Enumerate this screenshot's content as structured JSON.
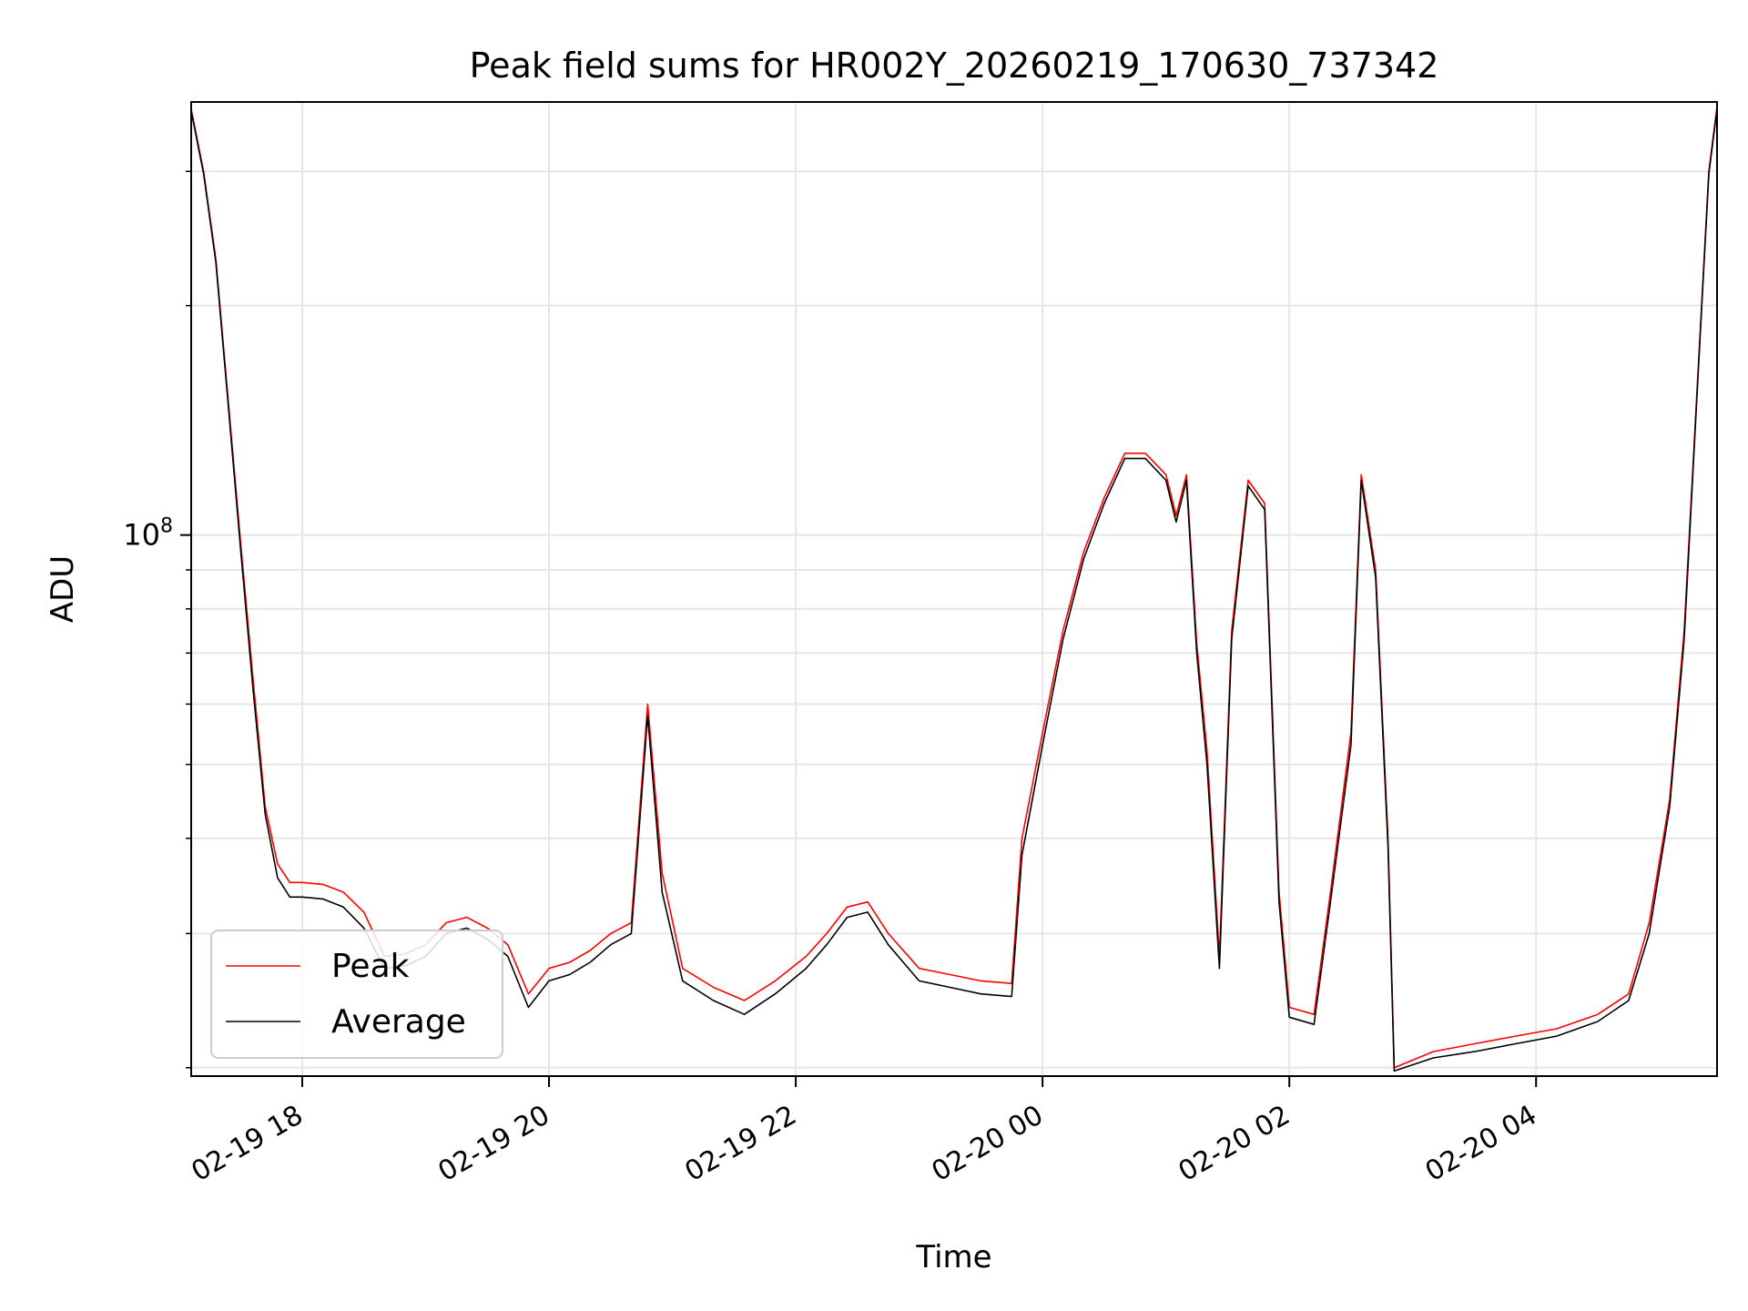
{
  "chart_data": {
    "type": "line",
    "title": "Peak field sums for HR002Y_20260219_170630_737342",
    "xlabel": "Time",
    "ylabel": "ADU",
    "yscale": "log",
    "xlim": [
      "2026-02-19 17:06",
      "2026-02-20 05:28"
    ],
    "ylim": [
      19500000,
      370000000
    ],
    "grid": true,
    "legend_position": "lower-left",
    "x_ticks": [
      {
        "t": "2026-02-19 18:00",
        "label": "02-19 18"
      },
      {
        "t": "2026-02-19 20:00",
        "label": "02-19 20"
      },
      {
        "t": "2026-02-19 22:00",
        "label": "02-19 22"
      },
      {
        "t": "2026-02-20 00:00",
        "label": "02-20 00"
      },
      {
        "t": "2026-02-20 02:00",
        "label": "02-20 02"
      },
      {
        "t": "2026-02-20 04:00",
        "label": "02-20 04"
      }
    ],
    "y_major_ticks": [
      {
        "value": 100000000,
        "base": "10",
        "exp": "8"
      }
    ],
    "y_minor_ticks": [
      20000000,
      30000000,
      40000000,
      50000000,
      60000000,
      70000000,
      80000000,
      90000000,
      200000000,
      300000000
    ],
    "series": [
      {
        "name": "Peak",
        "color": "#ff0000",
        "points": [
          [
            "2026-02-19 17:06",
            362000000
          ],
          [
            "2026-02-19 17:12",
            300000000
          ],
          [
            "2026-02-19 17:18",
            230000000
          ],
          [
            "2026-02-19 17:24",
            150000000
          ],
          [
            "2026-02-19 17:30",
            98000000
          ],
          [
            "2026-02-19 17:36",
            65000000
          ],
          [
            "2026-02-19 17:42",
            44000000
          ],
          [
            "2026-02-19 17:48",
            37000000
          ],
          [
            "2026-02-19 17:54",
            35000000
          ],
          [
            "2026-02-19 18:00",
            35000000
          ],
          [
            "2026-02-19 18:10",
            34800000
          ],
          [
            "2026-02-19 18:20",
            34000000
          ],
          [
            "2026-02-19 18:30",
            32000000
          ],
          [
            "2026-02-19 18:40",
            28000000
          ],
          [
            "2026-02-19 18:50",
            28200000
          ],
          [
            "2026-02-19 19:00",
            29000000
          ],
          [
            "2026-02-19 19:10",
            31000000
          ],
          [
            "2026-02-19 19:20",
            31500000
          ],
          [
            "2026-02-19 19:30",
            30500000
          ],
          [
            "2026-02-19 19:40",
            29000000
          ],
          [
            "2026-02-19 19:50",
            25000000
          ],
          [
            "2026-02-19 20:00",
            27000000
          ],
          [
            "2026-02-19 20:10",
            27500000
          ],
          [
            "2026-02-19 20:20",
            28500000
          ],
          [
            "2026-02-19 20:30",
            30000000
          ],
          [
            "2026-02-19 20:40",
            31000000
          ],
          [
            "2026-02-19 20:48",
            60000000
          ],
          [
            "2026-02-19 20:55",
            36000000
          ],
          [
            "2026-02-19 21:05",
            27000000
          ],
          [
            "2026-02-19 21:20",
            25500000
          ],
          [
            "2026-02-19 21:35",
            24500000
          ],
          [
            "2026-02-19 21:50",
            26000000
          ],
          [
            "2026-02-19 22:05",
            28000000
          ],
          [
            "2026-02-19 22:15",
            30000000
          ],
          [
            "2026-02-19 22:25",
            32500000
          ],
          [
            "2026-02-19 22:35",
            33000000
          ],
          [
            "2026-02-19 22:45",
            30000000
          ],
          [
            "2026-02-19 23:00",
            27000000
          ],
          [
            "2026-02-19 23:15",
            26500000
          ],
          [
            "2026-02-19 23:30",
            26000000
          ],
          [
            "2026-02-19 23:45",
            25800000
          ],
          [
            "2026-02-19 23:50",
            40000000
          ],
          [
            "2026-02-20 00:00",
            55000000
          ],
          [
            "2026-02-20 00:10",
            75000000
          ],
          [
            "2026-02-20 00:20",
            95000000
          ],
          [
            "2026-02-20 00:30",
            112000000
          ],
          [
            "2026-02-20 00:40",
            128000000
          ],
          [
            "2026-02-20 00:50",
            128000000
          ],
          [
            "2026-02-20 01:00",
            120000000
          ],
          [
            "2026-02-20 01:05",
            106000000
          ],
          [
            "2026-02-20 01:10",
            120000000
          ],
          [
            "2026-02-20 01:15",
            72000000
          ],
          [
            "2026-02-20 01:20",
            52000000
          ],
          [
            "2026-02-20 01:26",
            28000000
          ],
          [
            "2026-02-20 01:32",
            75000000
          ],
          [
            "2026-02-20 01:40",
            118000000
          ],
          [
            "2026-02-20 01:48",
            110000000
          ],
          [
            "2026-02-20 01:55",
            34000000
          ],
          [
            "2026-02-20 02:00",
            24000000
          ],
          [
            "2026-02-20 02:12",
            23500000
          ],
          [
            "2026-02-20 02:20",
            34000000
          ],
          [
            "2026-02-20 02:30",
            55000000
          ],
          [
            "2026-02-20 02:35",
            120000000
          ],
          [
            "2026-02-20 02:42",
            90000000
          ],
          [
            "2026-02-20 02:48",
            40000000
          ],
          [
            "2026-02-20 02:51",
            20000000
          ],
          [
            "2026-02-20 03:10",
            21000000
          ],
          [
            "2026-02-20 03:30",
            21500000
          ],
          [
            "2026-02-20 03:50",
            22000000
          ],
          [
            "2026-02-20 04:10",
            22500000
          ],
          [
            "2026-02-20 04:30",
            23500000
          ],
          [
            "2026-02-20 04:45",
            25000000
          ],
          [
            "2026-02-20 04:55",
            31000000
          ],
          [
            "2026-02-20 05:05",
            45000000
          ],
          [
            "2026-02-20 05:12",
            75000000
          ],
          [
            "2026-02-20 05:18",
            150000000
          ],
          [
            "2026-02-20 05:24",
            300000000
          ],
          [
            "2026-02-20 05:28",
            365000000
          ]
        ]
      },
      {
        "name": "Average",
        "color": "#000000",
        "points": [
          [
            "2026-02-19 17:06",
            360000000
          ],
          [
            "2026-02-19 17:12",
            298000000
          ],
          [
            "2026-02-19 17:18",
            228000000
          ],
          [
            "2026-02-19 17:24",
            148000000
          ],
          [
            "2026-02-19 17:30",
            96000000
          ],
          [
            "2026-02-19 17:36",
            63000000
          ],
          [
            "2026-02-19 17:42",
            43000000
          ],
          [
            "2026-02-19 17:48",
            35500000
          ],
          [
            "2026-02-19 17:54",
            33500000
          ],
          [
            "2026-02-19 18:00",
            33500000
          ],
          [
            "2026-02-19 18:10",
            33300000
          ],
          [
            "2026-02-19 18:20",
            32500000
          ],
          [
            "2026-02-19 18:30",
            30500000
          ],
          [
            "2026-02-19 18:40",
            27000000
          ],
          [
            "2026-02-19 18:50",
            27200000
          ],
          [
            "2026-02-19 19:00",
            28000000
          ],
          [
            "2026-02-19 19:10",
            30000000
          ],
          [
            "2026-02-19 19:20",
            30500000
          ],
          [
            "2026-02-19 19:30",
            29500000
          ],
          [
            "2026-02-19 19:40",
            28000000
          ],
          [
            "2026-02-19 19:50",
            24000000
          ],
          [
            "2026-02-19 20:00",
            26000000
          ],
          [
            "2026-02-19 20:10",
            26500000
          ],
          [
            "2026-02-19 20:20",
            27500000
          ],
          [
            "2026-02-19 20:30",
            29000000
          ],
          [
            "2026-02-19 20:40",
            30000000
          ],
          [
            "2026-02-19 20:48",
            58000000
          ],
          [
            "2026-02-19 20:55",
            34000000
          ],
          [
            "2026-02-19 21:05",
            26000000
          ],
          [
            "2026-02-19 21:20",
            24500000
          ],
          [
            "2026-02-19 21:35",
            23500000
          ],
          [
            "2026-02-19 21:50",
            25000000
          ],
          [
            "2026-02-19 22:05",
            27000000
          ],
          [
            "2026-02-19 22:15",
            29000000
          ],
          [
            "2026-02-19 22:25",
            31500000
          ],
          [
            "2026-02-19 22:35",
            32000000
          ],
          [
            "2026-02-19 22:45",
            29000000
          ],
          [
            "2026-02-19 23:00",
            26000000
          ],
          [
            "2026-02-19 23:15",
            25500000
          ],
          [
            "2026-02-19 23:30",
            25000000
          ],
          [
            "2026-02-19 23:45",
            24800000
          ],
          [
            "2026-02-19 23:50",
            38000000
          ],
          [
            "2026-02-20 00:00",
            53000000
          ],
          [
            "2026-02-20 00:10",
            73000000
          ],
          [
            "2026-02-20 00:20",
            93000000
          ],
          [
            "2026-02-20 00:30",
            110000000
          ],
          [
            "2026-02-20 00:40",
            126000000
          ],
          [
            "2026-02-20 00:50",
            126000000
          ],
          [
            "2026-02-20 01:00",
            118000000
          ],
          [
            "2026-02-20 01:05",
            104000000
          ],
          [
            "2026-02-20 01:10",
            118000000
          ],
          [
            "2026-02-20 01:15",
            70000000
          ],
          [
            "2026-02-20 01:20",
            50000000
          ],
          [
            "2026-02-20 01:26",
            27000000
          ],
          [
            "2026-02-20 01:32",
            73000000
          ],
          [
            "2026-02-20 01:40",
            116000000
          ],
          [
            "2026-02-20 01:48",
            108000000
          ],
          [
            "2026-02-20 01:55",
            33000000
          ],
          [
            "2026-02-20 02:00",
            23300000
          ],
          [
            "2026-02-20 02:12",
            22800000
          ],
          [
            "2026-02-20 02:20",
            33000000
          ],
          [
            "2026-02-20 02:30",
            53000000
          ],
          [
            "2026-02-20 02:35",
            118000000
          ],
          [
            "2026-02-20 02:42",
            88000000
          ],
          [
            "2026-02-20 02:48",
            39000000
          ],
          [
            "2026-02-20 02:51",
            19800000
          ],
          [
            "2026-02-20 03:10",
            20600000
          ],
          [
            "2026-02-20 03:30",
            21000000
          ],
          [
            "2026-02-20 03:50",
            21500000
          ],
          [
            "2026-02-20 04:10",
            22000000
          ],
          [
            "2026-02-20 04:30",
            23000000
          ],
          [
            "2026-02-20 04:45",
            24500000
          ],
          [
            "2026-02-20 04:55",
            30000000
          ],
          [
            "2026-02-20 05:05",
            44000000
          ],
          [
            "2026-02-20 05:12",
            73000000
          ],
          [
            "2026-02-20 05:18",
            148000000
          ],
          [
            "2026-02-20 05:24",
            298000000
          ],
          [
            "2026-02-20 05:28",
            362000000
          ]
        ]
      }
    ]
  }
}
